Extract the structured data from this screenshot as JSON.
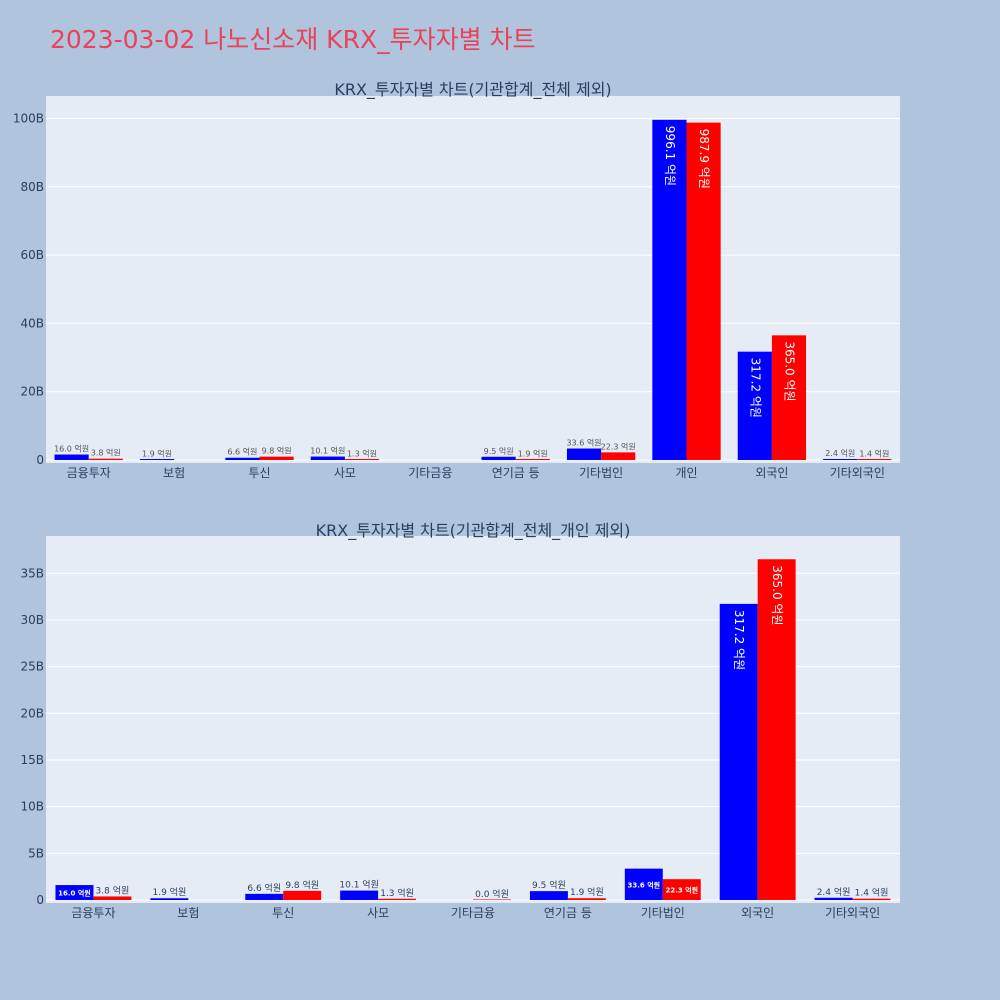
{
  "page": {
    "title": "2023-03-02 나노신소재 KRX_투자자별 차트"
  },
  "colors": {
    "buy": "#0000ff",
    "sell": "#ff0000",
    "plot_bg": "#e5ecf6",
    "page_bg": "#b0c4de",
    "title": "#e8435a"
  },
  "chart_data": [
    {
      "type": "bar",
      "title": "KRX_투자자별 차트(기관합계_전체 제외)",
      "categories": [
        "금융투자",
        "보험",
        "투신",
        "사모",
        "기타금융",
        "연기금 등",
        "기타법인",
        "개인",
        "외국인",
        "기타외국인"
      ],
      "series": [
        {
          "color": "#0000ff",
          "values": [
            1.6,
            0.19,
            0.66,
            1.01,
            null,
            0.95,
            3.36,
            99.61,
            31.72,
            0.24
          ],
          "labels": [
            "16.0 억원",
            "1.9 억원",
            "6.6 억원",
            "10.1 억원",
            "",
            "9.5 억원",
            "33.6 억원",
            "996.1 억원",
            "317.2 억원",
            "2.4 억원"
          ]
        },
        {
          "color": "#ff0000",
          "values": [
            0.38,
            null,
            0.98,
            0.13,
            null,
            0.19,
            2.23,
            98.79,
            36.5,
            0.14
          ],
          "labels": [
            "3.8 억원",
            "",
            "9.8 억원",
            "1.3 억원",
            "",
            "1.9 억원",
            "22.3 억원",
            "987.9 억원",
            "365.0 억원",
            "1.4 억원"
          ]
        }
      ],
      "ylim": [
        0,
        105
      ],
      "yticks": [
        0,
        20,
        40,
        60,
        80,
        100
      ],
      "ytick_labels": [
        "0",
        "20B",
        "40B",
        "60B",
        "80B",
        "100B"
      ],
      "grid": true
    },
    {
      "type": "bar",
      "title": "KRX_투자자별 차트(기관합계_전체_개인 제외)",
      "categories": [
        "금융투자",
        "보험",
        "투신",
        "사모",
        "기타금융",
        "연기금 등",
        "기타법인",
        "외국인",
        "기타외국인"
      ],
      "series": [
        {
          "color": "#0000ff",
          "values": [
            1.6,
            0.19,
            0.66,
            1.01,
            null,
            0.95,
            3.36,
            31.72,
            0.24
          ],
          "labels": [
            "16.0 억원",
            "1.9 억원",
            "6.6 억원",
            "10.1 억원",
            "",
            "9.5 억원",
            "33.6 억원",
            "317.2 억원",
            "2.4 억원"
          ]
        },
        {
          "color": "#ff0000",
          "values": [
            0.38,
            null,
            0.98,
            0.13,
            0.0,
            0.19,
            2.23,
            36.5,
            0.14
          ],
          "labels": [
            "3.8 억원",
            "",
            "9.8 억원",
            "1.3 억원",
            "0.0 억원",
            "1.9 억원",
            "22.3 억원",
            "365.0 억원",
            "1.4 억원"
          ]
        }
      ],
      "ylim": [
        0,
        38.5
      ],
      "yticks": [
        0,
        5,
        10,
        15,
        20,
        25,
        30,
        35
      ],
      "ytick_labels": [
        "0",
        "5B",
        "10B",
        "15B",
        "20B",
        "25B",
        "30B",
        "35B"
      ],
      "grid": true
    }
  ]
}
